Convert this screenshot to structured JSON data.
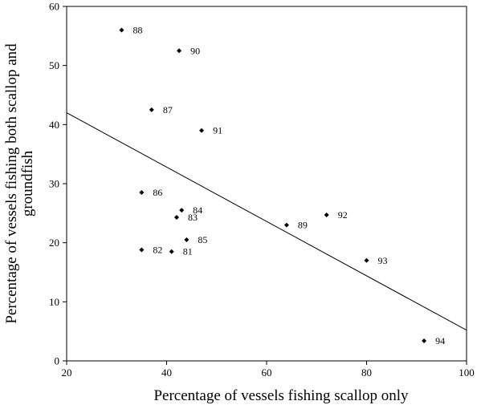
{
  "chart_data": {
    "type": "scatter",
    "xlabel": "Percentage of vessels fishing scallop only",
    "ylabel_lines": [
      "Percentage of vessels fishing both scallop and",
      "groundfish"
    ],
    "xlim": [
      20,
      100
    ],
    "ylim": [
      0,
      60
    ],
    "x_ticks": [
      "20",
      "40",
      "60",
      "80",
      "100"
    ],
    "y_ticks": [
      "0",
      "10",
      "20",
      "30",
      "40",
      "50",
      "60"
    ],
    "grid": false,
    "points": [
      {
        "label": "81",
        "x": 41,
        "y": 18.5
      },
      {
        "label": "82",
        "x": 35,
        "y": 18.8
      },
      {
        "label": "83",
        "x": 42,
        "y": 24.3
      },
      {
        "label": "84",
        "x": 43,
        "y": 25.5
      },
      {
        "label": "85",
        "x": 44,
        "y": 20.5
      },
      {
        "label": "86",
        "x": 35,
        "y": 28.5
      },
      {
        "label": "87",
        "x": 37,
        "y": 42.5
      },
      {
        "label": "88",
        "x": 31,
        "y": 56
      },
      {
        "label": "89",
        "x": 64,
        "y": 23
      },
      {
        "label": "90",
        "x": 42.5,
        "y": 52.5
      },
      {
        "label": "91",
        "x": 47,
        "y": 39
      },
      {
        "label": "92",
        "x": 72,
        "y": 24.7
      },
      {
        "label": "93",
        "x": 80,
        "y": 17
      },
      {
        "label": "94",
        "x": 91.5,
        "y": 3.4
      }
    ],
    "trendline": {
      "x": [
        20,
        100
      ],
      "y": [
        42,
        5.2
      ]
    }
  }
}
